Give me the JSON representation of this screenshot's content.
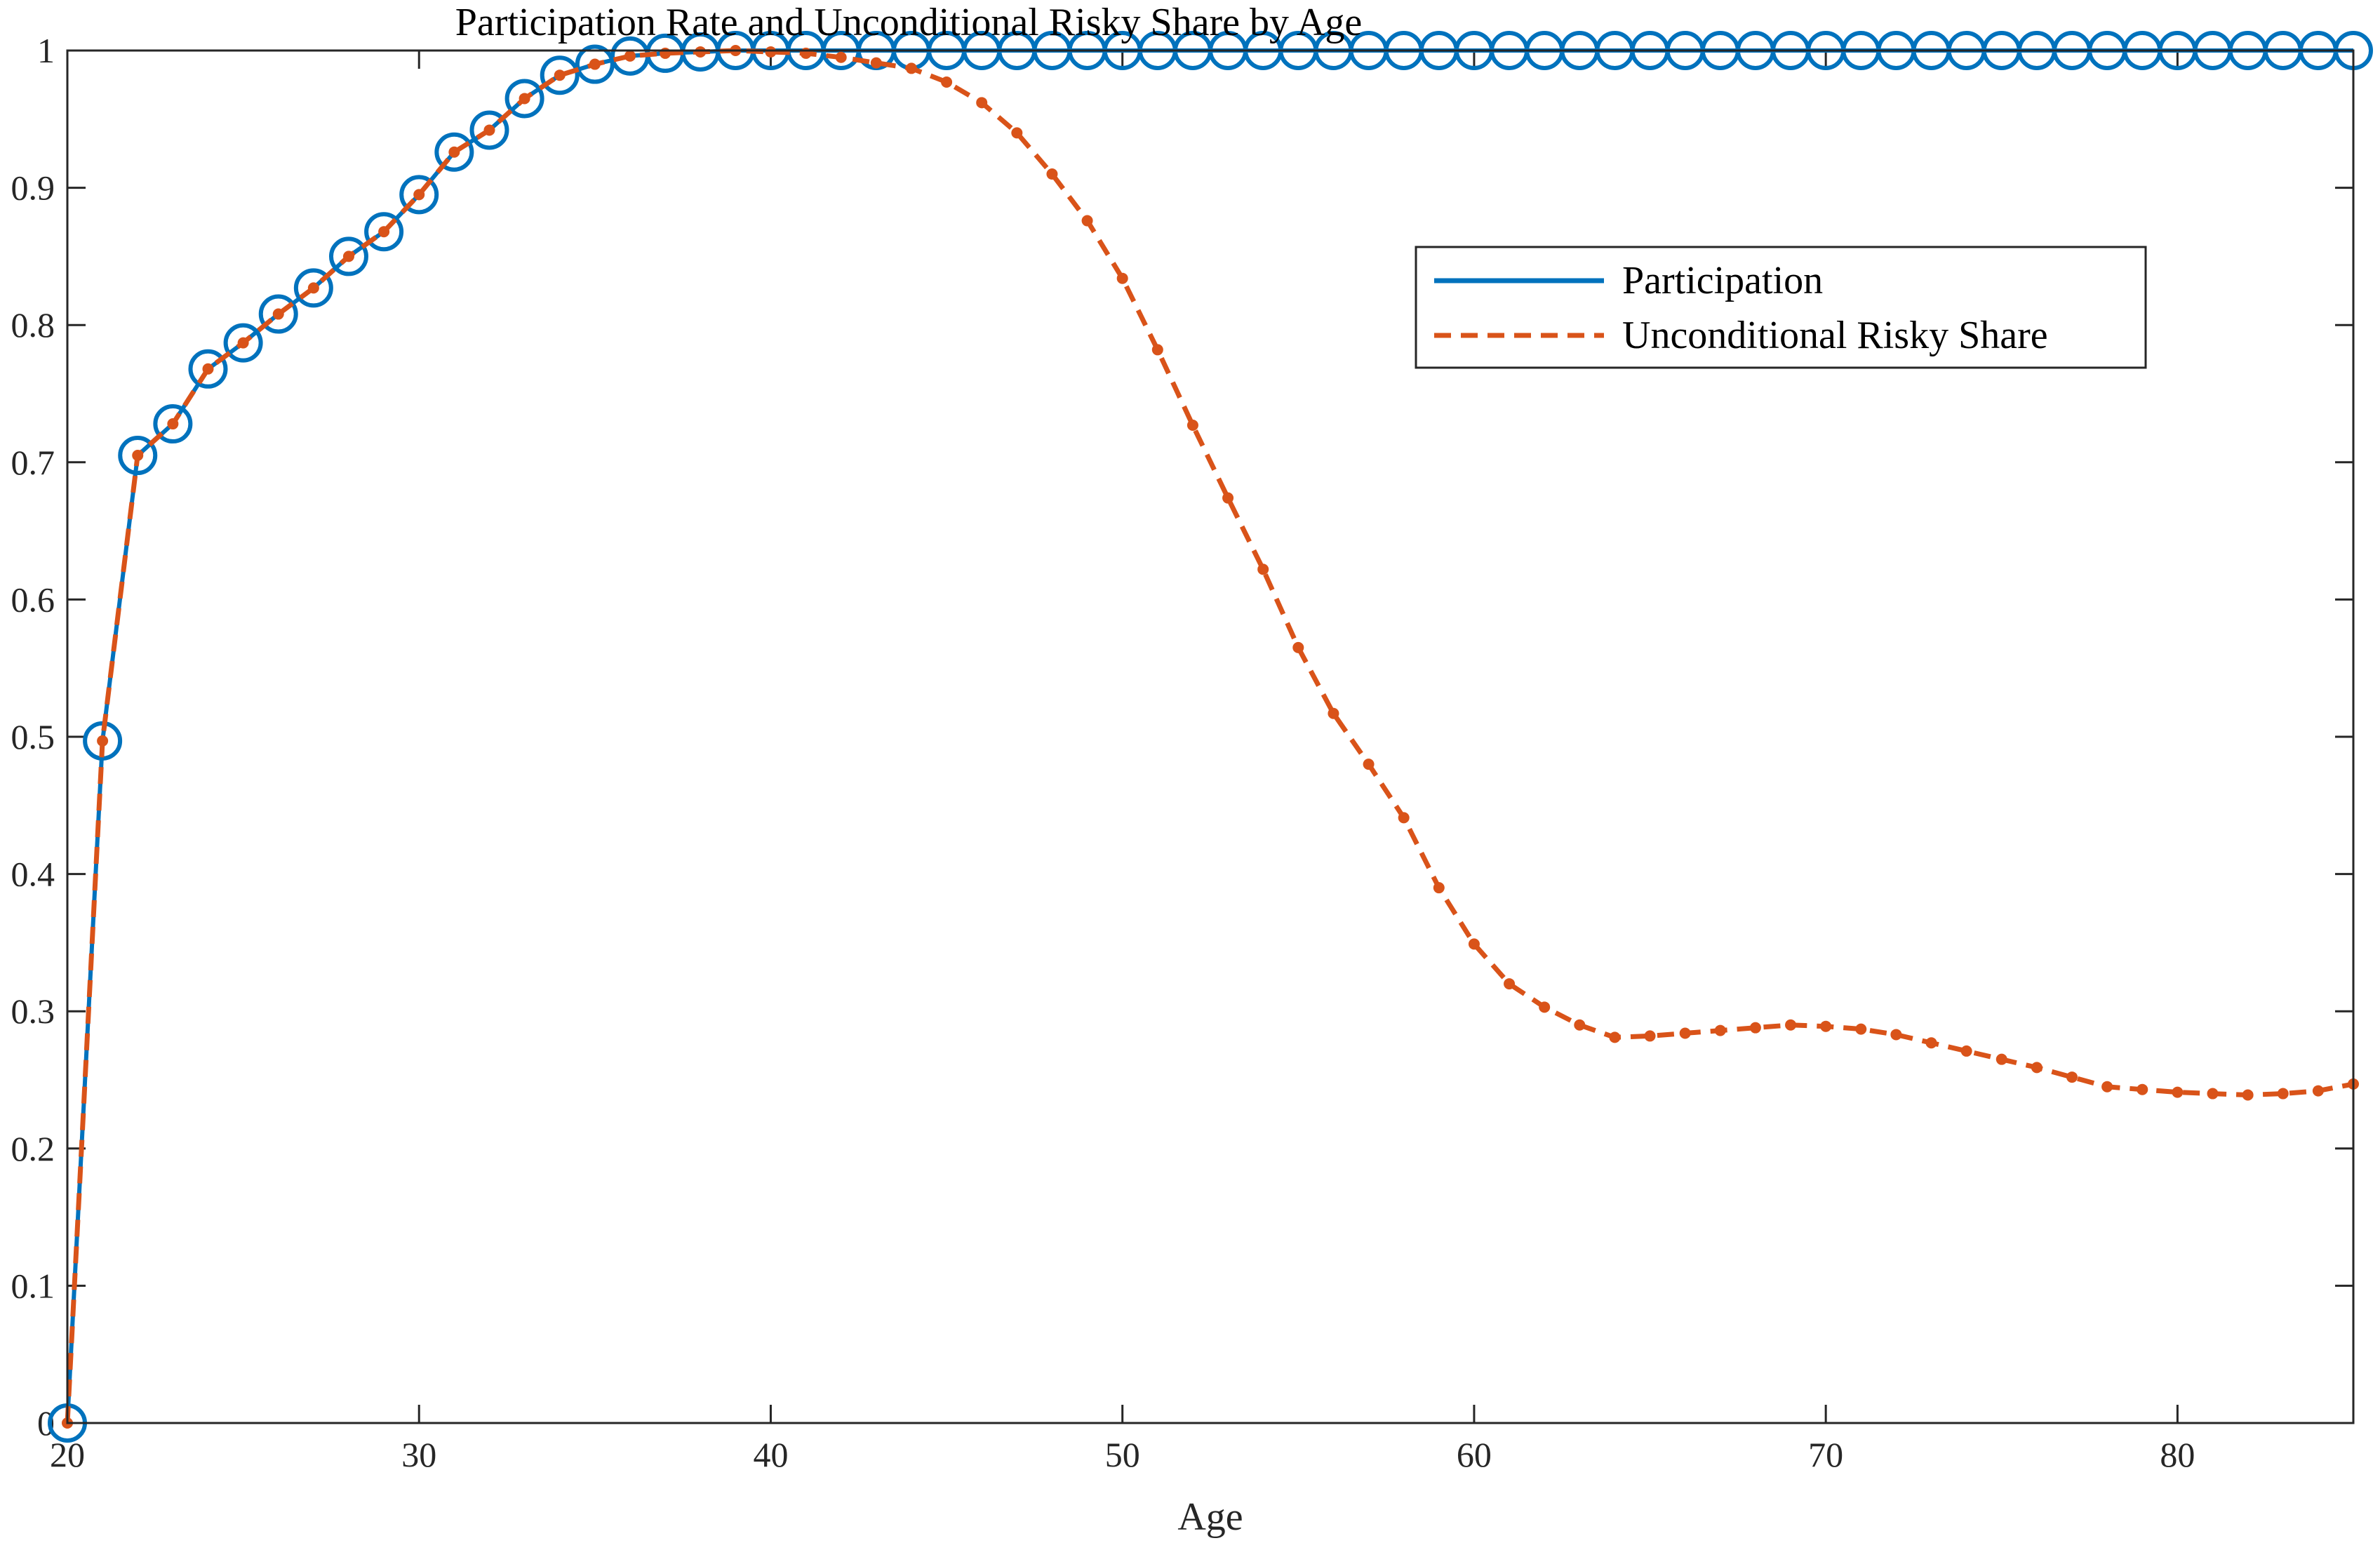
{
  "chart_data": {
    "type": "line",
    "title": "Participation Rate and Unconditional Risky Share by Age",
    "xlabel": "Age",
    "ylabel": "",
    "xlim": [
      20,
      85
    ],
    "ylim": [
      0,
      1
    ],
    "xticks": [
      "20",
      "30",
      "40",
      "50",
      "60",
      "70",
      "80"
    ],
    "yticks": [
      "0",
      "0.1",
      "0.2",
      "0.3",
      "0.4",
      "0.5",
      "0.6",
      "0.7",
      "0.8",
      "0.9",
      "1"
    ],
    "grid": false,
    "legend_position": "top-right",
    "x": [
      20,
      21,
      22,
      23,
      24,
      25,
      26,
      27,
      28,
      29,
      30,
      31,
      32,
      33,
      34,
      35,
      36,
      37,
      38,
      39,
      40,
      41,
      42,
      43,
      44,
      45,
      46,
      47,
      48,
      49,
      50,
      51,
      52,
      53,
      54,
      55,
      56,
      57,
      58,
      59,
      60,
      61,
      62,
      63,
      64,
      65,
      66,
      67,
      68,
      69,
      70,
      71,
      72,
      73,
      74,
      75,
      76,
      77,
      78,
      79,
      80,
      81,
      82,
      83,
      84,
      85
    ],
    "series": [
      {
        "name": "Participation",
        "color": "#0072BD",
        "style": "solid",
        "marker": "circle",
        "values": [
          0.0,
          0.497,
          0.705,
          0.728,
          0.768,
          0.787,
          0.808,
          0.827,
          0.85,
          0.868,
          0.895,
          0.926,
          0.942,
          0.965,
          0.982,
          0.99,
          0.996,
          0.998,
          0.999,
          1,
          1,
          1,
          1,
          1,
          1,
          1,
          1,
          1,
          1,
          1,
          1,
          1,
          1,
          1,
          1,
          1,
          1,
          1,
          1,
          1,
          1,
          1,
          1,
          1,
          1,
          1,
          1,
          1,
          1,
          1,
          1,
          1,
          1,
          1,
          1,
          1,
          1,
          1,
          1,
          1,
          1,
          1,
          1,
          1,
          1,
          1
        ]
      },
      {
        "name": "Unconditional Risky Share",
        "color": "#D95319",
        "style": "dashed",
        "marker": "dot",
        "values": [
          0.0,
          0.497,
          0.705,
          0.728,
          0.768,
          0.787,
          0.808,
          0.827,
          0.85,
          0.868,
          0.895,
          0.926,
          0.942,
          0.965,
          0.982,
          0.99,
          0.996,
          0.998,
          0.999,
          1.0,
          0.999,
          0.998,
          0.995,
          0.991,
          0.987,
          0.977,
          0.962,
          0.94,
          0.91,
          0.876,
          0.834,
          0.782,
          0.727,
          0.674,
          0.622,
          0.565,
          0.517,
          0.48,
          0.441,
          0.39,
          0.349,
          0.32,
          0.303,
          0.29,
          0.281,
          0.282,
          0.284,
          0.286,
          0.288,
          0.29,
          0.289,
          0.287,
          0.283,
          0.277,
          0.271,
          0.265,
          0.259,
          0.252,
          0.245,
          0.243,
          0.241,
          0.24,
          0.239,
          0.24,
          0.242,
          0.247
        ]
      }
    ]
  }
}
